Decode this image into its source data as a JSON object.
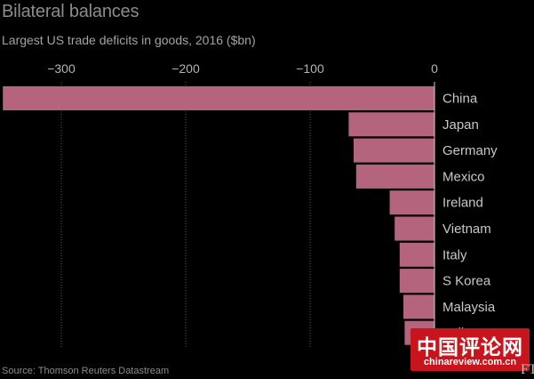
{
  "header": {
    "title": "Bilateral balances",
    "subtitle": "Largest US trade deficits in goods, 2016 ($bn)"
  },
  "footer": {
    "source": "Source: Thomson Reuters Datastream"
  },
  "watermark": {
    "chinese": "中国评论网",
    "url": "chinareview.com.cn"
  },
  "logo": {
    "text": "FT"
  },
  "colors": {
    "background": "#000000",
    "bar": "#b5647e",
    "bar_edge": "#000000",
    "grid": "#5a5a5a",
    "tick_text": "#b3b3b3",
    "category_text": "#c8c8c8",
    "watermark_bg": "#c8141c"
  },
  "chart_data": {
    "type": "bar",
    "orientation": "horizontal",
    "title": "Bilateral balances",
    "subtitle": "Largest US trade deficits in goods, 2016 ($bn)",
    "categories": [
      "China",
      "Japan",
      "Germany",
      "Mexico",
      "Ireland",
      "Vietnam",
      "Italy",
      "S Korea",
      "Malaysia",
      "India"
    ],
    "values": [
      -347,
      -69,
      -65,
      -63,
      -36,
      -32,
      -28,
      -28,
      -25,
      -24
    ],
    "x_ticks": [
      -300,
      -200,
      -100,
      0
    ],
    "tick_labels": [
      "−300",
      "−200",
      "−100",
      "0"
    ],
    "xlim": [
      -347,
      0
    ],
    "grid": "vertical dotted",
    "xlabel": "",
    "ylabel": ""
  }
}
